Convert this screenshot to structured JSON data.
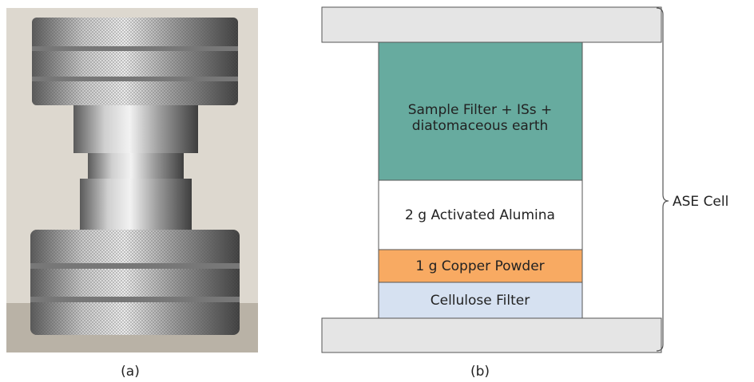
{
  "photo_caption": "(a)",
  "diagram": {
    "caption": "(b)",
    "label": "ASE Cell",
    "layers": [
      {
        "lines": [
          "Sample Filter + ISs +",
          "diatomaceous earth"
        ]
      },
      {
        "lines": [
          "2 g Activated Alumina"
        ]
      },
      {
        "lines": [
          "1 g Copper Powder"
        ]
      },
      {
        "lines": [
          "Cellulose Filter"
        ]
      }
    ]
  }
}
